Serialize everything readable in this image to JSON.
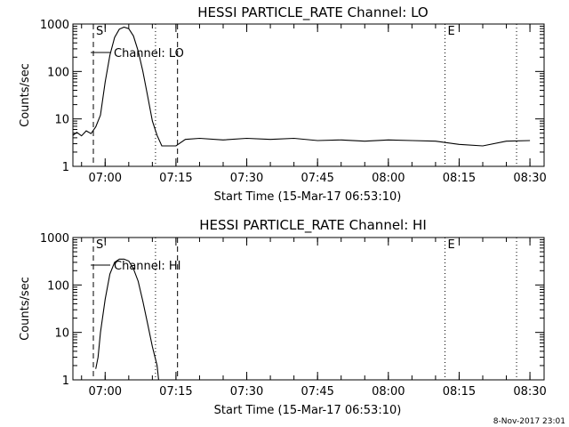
{
  "footer": {
    "timestamp": "8-Nov-2017 23:01"
  },
  "chart_data": [
    {
      "type": "line",
      "title": "HESSI PARTICLE_RATE Channel: LO",
      "xlabel": "Start Time (15-Mar-17 06:53:10)",
      "ylabel": "Counts/sec",
      "yscale": "log",
      "ylim": [
        1,
        1000
      ],
      "xlim": [
        "06:53:10",
        "08:33:00"
      ],
      "x_ticks": [
        "07:00",
        "07:15",
        "07:30",
        "07:45",
        "08:00",
        "08:15",
        "08:30"
      ],
      "y_ticks": [
        "1",
        "10",
        "100",
        "1000"
      ],
      "legend": {
        "entries": [
          "Channel: LO"
        ],
        "placement": "top-left"
      },
      "markers": [
        {
          "label": "S",
          "time": "06:57:30",
          "style": "dashed"
        },
        {
          "label": "",
          "time": "07:10:40",
          "style": "dotted"
        },
        {
          "label": "",
          "time": "07:15:20",
          "style": "dashed"
        },
        {
          "label": "E",
          "time": "08:12:00",
          "style": "dotted"
        },
        {
          "label": "",
          "time": "08:27:10",
          "style": "dotted"
        }
      ],
      "series": [
        {
          "name": "Channel: LO",
          "points": [
            [
              "06:53:10",
              4.5
            ],
            [
              "06:54:00",
              5.2
            ],
            [
              "06:55:00",
              4.4
            ],
            [
              "06:56:00",
              5.6
            ],
            [
              "06:57:00",
              4.9
            ],
            [
              "06:58:00",
              6.8
            ],
            [
              "06:59:00",
              12
            ],
            [
              "07:00:00",
              60
            ],
            [
              "07:01:00",
              220
            ],
            [
              "07:02:00",
              520
            ],
            [
              "07:03:00",
              780
            ],
            [
              "07:04:00",
              860
            ],
            [
              "07:05:00",
              800
            ],
            [
              "07:06:00",
              560
            ],
            [
              "07:07:00",
              270
            ],
            [
              "07:08:00",
              100
            ],
            [
              "07:09:00",
              30
            ],
            [
              "07:10:00",
              9
            ],
            [
              "07:11:00",
              4.5
            ],
            [
              "07:12:00",
              2.7
            ],
            [
              "07:15:00",
              2.7
            ],
            [
              "07:17:00",
              3.7
            ],
            [
              "07:20:00",
              3.9
            ],
            [
              "07:25:00",
              3.6
            ],
            [
              "07:30:00",
              3.9
            ],
            [
              "07:35:00",
              3.7
            ],
            [
              "07:40:00",
              3.9
            ],
            [
              "07:45:00",
              3.5
            ],
            [
              "07:50:00",
              3.6
            ],
            [
              "07:55:00",
              3.4
            ],
            [
              "08:00:00",
              3.6
            ],
            [
              "08:05:00",
              3.5
            ],
            [
              "08:10:00",
              3.4
            ],
            [
              "08:15:00",
              2.9
            ],
            [
              "08:20:00",
              2.7
            ],
            [
              "08:25:00",
              3.4
            ],
            [
              "08:30:00",
              3.5
            ]
          ]
        }
      ]
    },
    {
      "type": "line",
      "title": "HESSI PARTICLE_RATE Channel: HI",
      "xlabel": "Start Time (15-Mar-17 06:53:10)",
      "ylabel": "Counts/sec",
      "yscale": "log",
      "ylim": [
        1,
        1000
      ],
      "xlim": [
        "06:53:10",
        "08:33:00"
      ],
      "x_ticks": [
        "07:00",
        "07:15",
        "07:30",
        "07:45",
        "08:00",
        "08:15",
        "08:30"
      ],
      "y_ticks": [
        "1",
        "10",
        "100",
        "1000"
      ],
      "legend": {
        "entries": [
          "Channel: HI"
        ],
        "placement": "top-left"
      },
      "markers": [
        {
          "label": "S",
          "time": "06:57:30",
          "style": "dashed"
        },
        {
          "label": "",
          "time": "07:10:40",
          "style": "dotted"
        },
        {
          "label": "",
          "time": "07:15:20",
          "style": "dashed"
        },
        {
          "label": "E",
          "time": "08:12:00",
          "style": "dotted"
        },
        {
          "label": "",
          "time": "08:27:10",
          "style": "dotted"
        }
      ],
      "series": [
        {
          "name": "Channel: HI",
          "points": [
            [
              "06:58:00",
              1.7
            ],
            [
              "06:58:30",
              3
            ],
            [
              "06:59:00",
              10
            ],
            [
              "07:00:00",
              50
            ],
            [
              "07:01:00",
              170
            ],
            [
              "07:02:00",
              300
            ],
            [
              "07:03:00",
              350
            ],
            [
              "07:04:00",
              350
            ],
            [
              "07:05:00",
              320
            ],
            [
              "07:06:00",
              220
            ],
            [
              "07:07:00",
              120
            ],
            [
              "07:08:00",
              45
            ],
            [
              "07:09:00",
              15
            ],
            [
              "07:10:00",
              5
            ],
            [
              "07:11:00",
              2
            ],
            [
              "07:11:20",
              1
            ]
          ]
        }
      ]
    }
  ]
}
